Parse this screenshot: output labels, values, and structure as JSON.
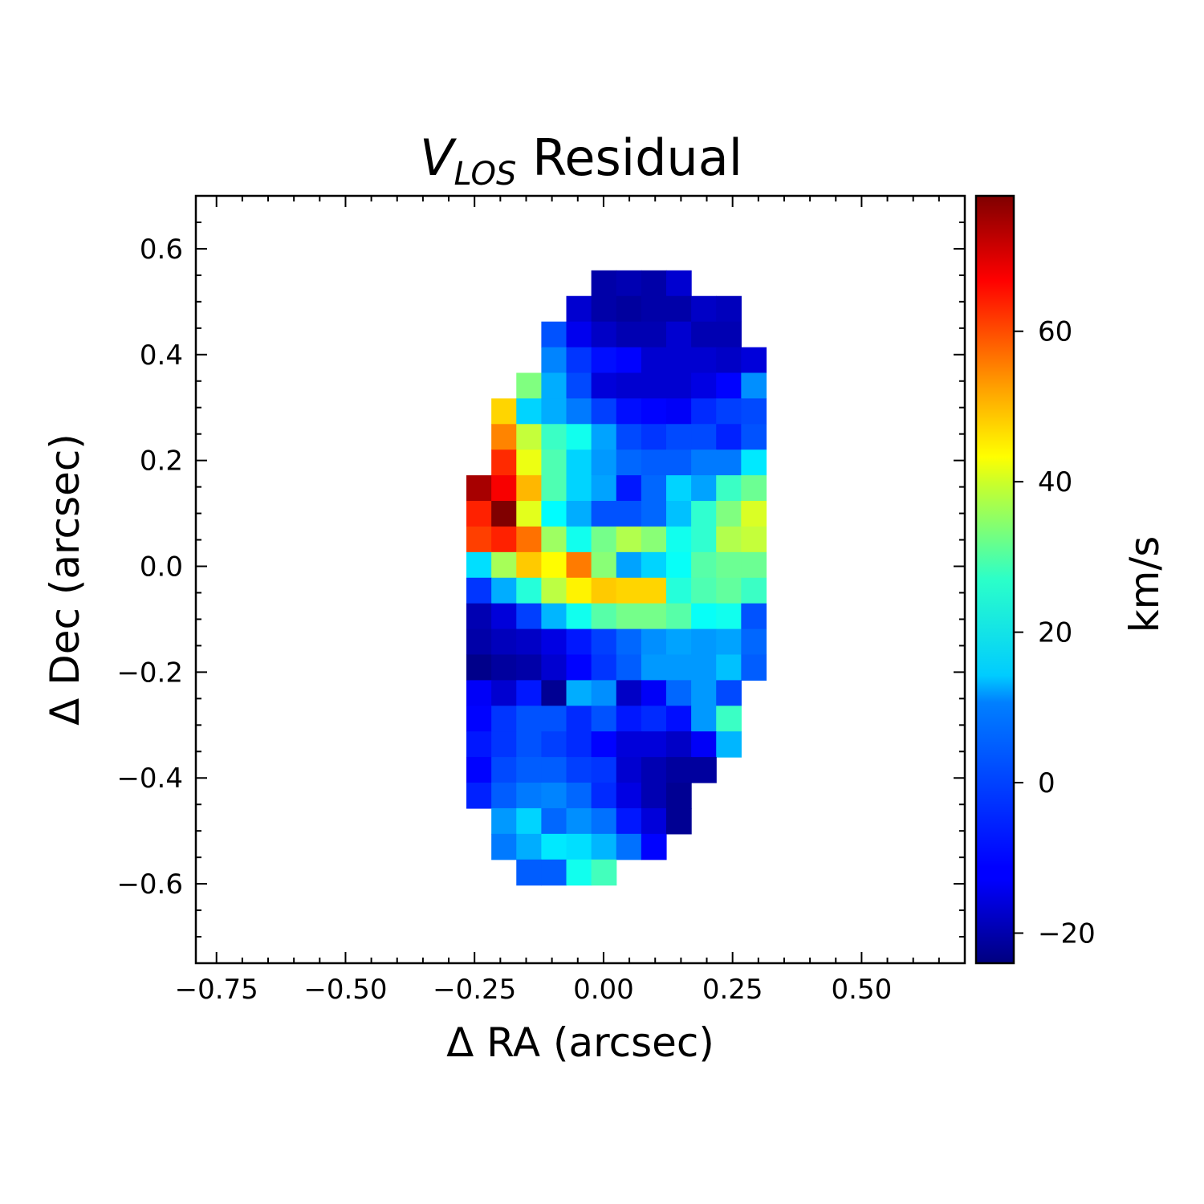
{
  "chart_data": {
    "type": "heatmap",
    "title": {
      "symbol": "V",
      "subscript": "LOS",
      "text": " Residual"
    },
    "xlabel": "Δ RA (arcsec)",
    "ylabel": "Δ Dec (arcsec)",
    "colorbar_label": "km/s",
    "xlim": [
      -0.79,
      0.7
    ],
    "ylim": [
      -0.75,
      0.7
    ],
    "xticks": [
      -0.75,
      -0.5,
      -0.25,
      0.0,
      0.25,
      0.5
    ],
    "xtick_labels": [
      "−0.75",
      "−0.50",
      "−0.25",
      "0.00",
      "0.25",
      "0.50"
    ],
    "yticks": [
      -0.6,
      -0.4,
      -0.2,
      0.0,
      0.2,
      0.4,
      0.6
    ],
    "ytick_labels": [
      "−0.6",
      "−0.4",
      "−0.2",
      "0.0",
      "0.2",
      "0.4",
      "0.6"
    ],
    "colorbar": {
      "colormap": "jet",
      "vmin": -24,
      "vmax": 78,
      "ticks": [
        -20,
        0,
        20,
        40,
        60
      ],
      "tick_labels": [
        "−20",
        "0",
        "20",
        "40",
        "60"
      ]
    },
    "pixel": {
      "size_arcsec": 0.0484,
      "x_first_center": -0.29,
      "y_first_center": 0.535
    },
    "grid": [
      [
        null,
        null,
        null,
        null,
        null,
        null,
        -20,
        -19,
        -20,
        -16,
        null,
        null,
        null
      ],
      [
        null,
        null,
        null,
        null,
        null,
        -16,
        -20,
        -21,
        -20,
        -20,
        -17,
        -18,
        null
      ],
      [
        null,
        null,
        null,
        null,
        -3,
        -13,
        -17,
        -19,
        -19,
        -16,
        -19,
        -19,
        null
      ],
      [
        null,
        null,
        null,
        null,
        2,
        -6,
        -10,
        -11,
        -16,
        -16,
        -16,
        -17,
        -15
      ],
      [
        null,
        null,
        null,
        27,
        6,
        -4,
        -15,
        -16,
        -16,
        -16,
        -14,
        -11,
        3
      ],
      [
        null,
        null,
        44,
        10,
        6,
        1,
        -5,
        -10,
        -11,
        -12,
        -7,
        -5,
        -4
      ],
      [
        null,
        null,
        52,
        34,
        20,
        16,
        5,
        -4,
        -6,
        -4,
        -4,
        -8,
        -3
      ],
      [
        null,
        null,
        61,
        38,
        22,
        10,
        4,
        -1,
        -2,
        -2,
        1,
        1,
        12
      ],
      [
        null,
        74,
        66,
        47,
        22,
        10,
        5,
        -9,
        -1,
        10,
        5,
        20,
        25
      ],
      [
        null,
        62,
        78,
        37,
        14,
        6,
        -3,
        -3,
        -1,
        8,
        19,
        27,
        36
      ],
      [
        null,
        59,
        62,
        54,
        30,
        16,
        26,
        32,
        28,
        16,
        19,
        32,
        34
      ],
      [
        null,
        11,
        31,
        45,
        40,
        53,
        28,
        5,
        10,
        15,
        23,
        25,
        25
      ],
      [
        null,
        -6,
        6,
        18,
        33,
        41,
        45,
        44,
        44,
        18,
        22,
        24,
        20
      ],
      [
        null,
        -19,
        -15,
        -5,
        7,
        16,
        23,
        26,
        26,
        23,
        15,
        16,
        -3
      ],
      [
        null,
        -20,
        -18,
        -17,
        -14,
        -9,
        -5,
        -1,
        3,
        5,
        4,
        5,
        -1
      ],
      [
        null,
        -23,
        -21,
        -20,
        -16,
        -11,
        -6,
        -2,
        4,
        4,
        4,
        8,
        -2
      ],
      [
        null,
        -12,
        -16,
        -9,
        -22,
        6,
        3,
        -17,
        -12,
        -1,
        4,
        -4,
        null
      ],
      [
        null,
        -11,
        -6,
        -3,
        -3,
        -7,
        -3,
        -9,
        -7,
        -10,
        4,
        20,
        null
      ],
      [
        null,
        -9,
        -6,
        -3,
        -5,
        -7,
        -11,
        -15,
        -15,
        -17,
        -12,
        7,
        null
      ],
      [
        null,
        -11,
        -4,
        -2,
        -2,
        -5,
        -6,
        -16,
        -19,
        -21,
        -21,
        null,
        null
      ],
      [
        null,
        -8,
        -2,
        1,
        2,
        -1,
        -7,
        -14,
        -19,
        -22,
        null,
        null,
        null
      ],
      [
        null,
        null,
        4,
        10,
        -1,
        3,
        0,
        -9,
        -15,
        -22,
        null,
        null,
        null
      ],
      [
        null,
        null,
        1,
        6,
        12,
        11,
        7,
        0,
        -11,
        null,
        null,
        null,
        null
      ],
      [
        null,
        null,
        null,
        -2,
        -2,
        16,
        21,
        null,
        null,
        null,
        null,
        null,
        null
      ]
    ]
  }
}
